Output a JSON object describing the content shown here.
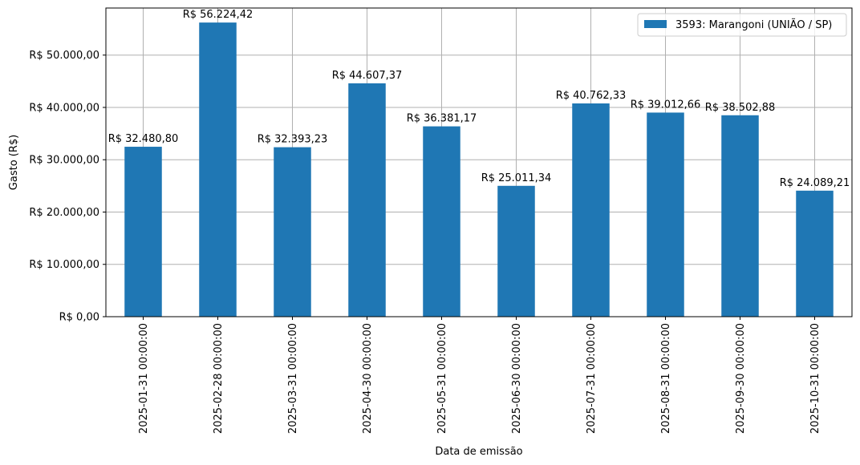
{
  "chart_data": {
    "type": "bar",
    "categories": [
      "2025-01-31 00:00:00",
      "2025-02-28 00:00:00",
      "2025-03-31 00:00:00",
      "2025-04-30 00:00:00",
      "2025-05-31 00:00:00",
      "2025-06-30 00:00:00",
      "2025-07-31 00:00:00",
      "2025-08-31 00:00:00",
      "2025-09-30 00:00:00",
      "2025-10-31 00:00:00"
    ],
    "series": [
      {
        "name": "3593: Marangoni (UNIÃO / SP)",
        "color": "#1f77b4",
        "values": [
          32480.8,
          56224.42,
          32393.23,
          44607.37,
          36381.17,
          25011.34,
          40762.33,
          39012.66,
          38502.88,
          24089.21
        ],
        "data_labels": [
          "R$ 32.480,80",
          "R$ 56.224,42",
          "R$ 32.393,23",
          "R$ 44.607,37",
          "R$ 36.381,17",
          "R$ 25.011,34",
          "R$ 40.762,33",
          "R$ 39.012,66",
          "R$ 38.502,88",
          "R$ 24.089,21"
        ]
      }
    ],
    "xlabel": "Data de emissão",
    "ylabel": "Gasto (R$)",
    "ylim": [
      0,
      59000
    ],
    "yticks": [
      0,
      10000,
      20000,
      30000,
      40000,
      50000
    ],
    "ytick_labels": [
      "R$ 0,00",
      "R$ 10.000,00",
      "R$ 20.000,00",
      "R$ 30.000,00",
      "R$ 40.000,00",
      "R$ 50.000,00"
    ],
    "grid": true,
    "legend": "top-right"
  }
}
